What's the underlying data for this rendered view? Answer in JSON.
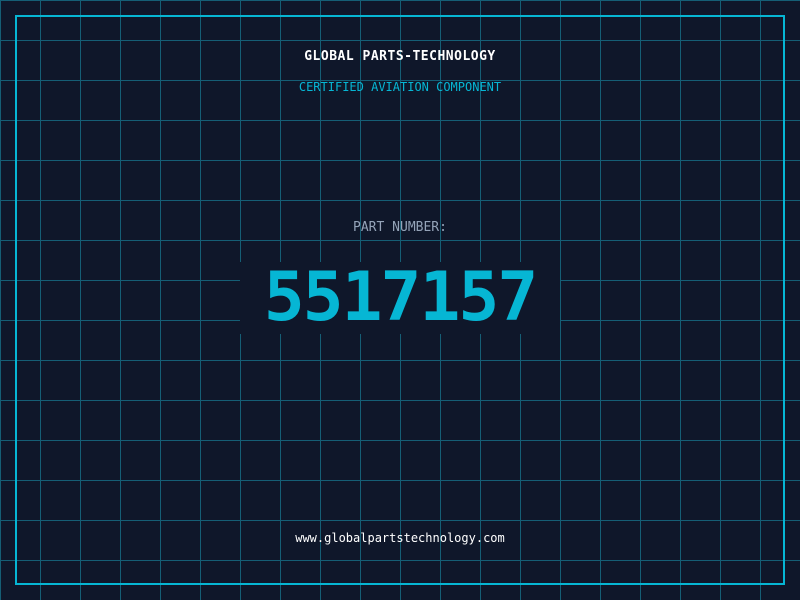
{
  "header": {
    "brand": "GLOBAL PARTS-TECHNOLOGY",
    "subtitle": "CERTIFIED AVIATION COMPONENT"
  },
  "main": {
    "label": "PART NUMBER:",
    "part_number": "5517157"
  },
  "footer": {
    "url": "www.globalpartstechnology.com"
  },
  "colors": {
    "background": "#0f172a",
    "grid": "#155e75",
    "accent": "#06b6d4"
  }
}
